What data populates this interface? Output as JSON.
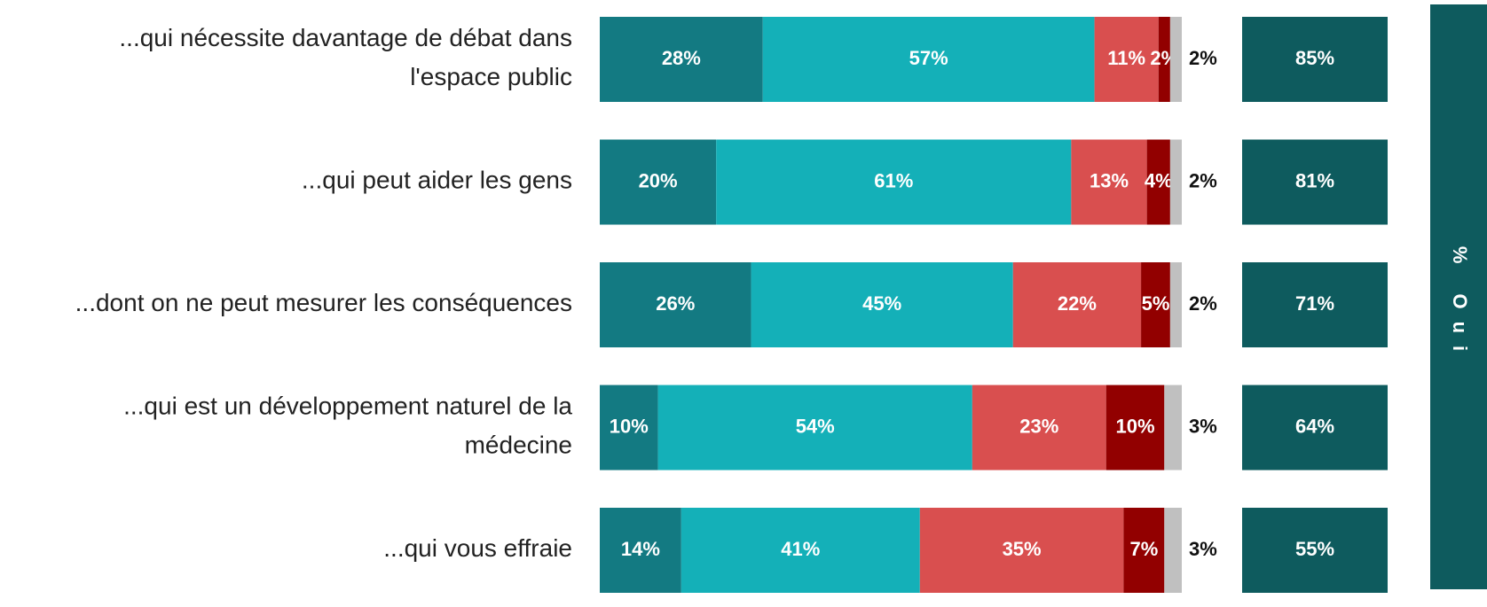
{
  "chart_data": {
    "type": "stacked-bar",
    "title": "% Oui",
    "categories": [
      "...qui nécessite davantage de débat dans\nl'espace public",
      "...qui peut aider les gens",
      "...dont on ne peut mesurer les conséquences",
      "...qui est un développement naturel de la\nmédecine",
      "...qui vous effraie"
    ],
    "series": [
      {
        "color": "#137a82",
        "values": [
          28,
          20,
          26,
          10,
          14
        ],
        "value_labels": [
          "28%",
          "20%",
          "26%",
          "10%",
          "14%"
        ]
      },
      {
        "color": "#14b0b8",
        "values": [
          57,
          61,
          45,
          54,
          41
        ],
        "value_labels": [
          "57%",
          "61%",
          "45%",
          "54%",
          "41%"
        ]
      },
      {
        "color": "#d94f4f",
        "values": [
          11,
          13,
          22,
          23,
          35
        ],
        "value_labels": [
          "11%",
          "13%",
          "22%",
          "23%",
          "35%"
        ]
      },
      {
        "color": "#920000",
        "values": [
          2,
          4,
          5,
          10,
          7
        ],
        "value_labels": [
          "2%",
          "4%",
          "5%",
          "10%",
          "7%"
        ]
      },
      {
        "color": "#c0c0c0",
        "values": [
          2,
          2,
          2,
          3,
          3
        ],
        "value_labels": [
          "2%",
          "2%",
          "2%",
          "3%",
          "3%"
        ]
      }
    ],
    "totals": {
      "color": "#0e5b5e",
      "values": [
        85,
        81,
        71,
        64,
        55
      ],
      "value_labels": [
        "85%",
        "81%",
        "71%",
        "64%",
        "55%"
      ]
    }
  }
}
